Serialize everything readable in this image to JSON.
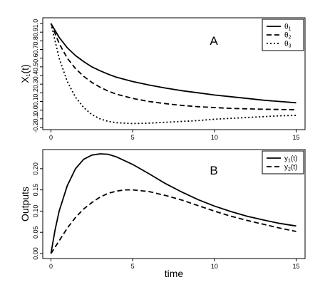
{
  "chart_data": [
    {
      "type": "line",
      "panel_label": "A",
      "ylabel": "X",
      "ylabel_sub": "1",
      "ylabel_suffix": "(t)",
      "xlabel": "",
      "xlim": [
        0,
        15
      ],
      "ylim": [
        -0.2,
        1.0
      ],
      "x_ticks": [
        0,
        5,
        10,
        15
      ],
      "x_tick_labels": [
        "0",
        "5",
        "10",
        "15"
      ],
      "y_ticks": [
        -0.2,
        -0.1,
        0.0,
        0.1,
        0.2,
        0.3,
        0.4,
        0.5,
        0.6,
        0.7,
        0.8,
        0.9,
        1.0
      ],
      "y_tick_labels": [
        "-0.2",
        "-0.1",
        "0.0",
        "0.1",
        "0.2",
        "0.3",
        "0.4",
        "0.5",
        "0.6",
        "0.7",
        "0.8",
        "0.9",
        "1.0"
      ],
      "grid": false,
      "legend_position": "top-right",
      "series": [
        {
          "name": "θ",
          "name_sub": "1",
          "style": "solid",
          "x": [
            0,
            0.5,
            1,
            1.5,
            2,
            2.5,
            3,
            3.5,
            4,
            5,
            6,
            7,
            8,
            9,
            10,
            11,
            12,
            13,
            14,
            15
          ],
          "y": [
            1.0,
            0.84,
            0.72,
            0.63,
            0.56,
            0.5,
            0.455,
            0.415,
            0.38,
            0.33,
            0.29,
            0.255,
            0.225,
            0.2,
            0.175,
            0.155,
            0.135,
            0.115,
            0.1,
            0.085
          ]
        },
        {
          "name": "θ",
          "name_sub": "2",
          "style": "dashed",
          "x": [
            0,
            0.5,
            1,
            1.5,
            2,
            2.5,
            3,
            3.5,
            4,
            5,
            6,
            7,
            8,
            9,
            10,
            11,
            12,
            13,
            14,
            15
          ],
          "y": [
            1.0,
            0.77,
            0.6,
            0.48,
            0.39,
            0.32,
            0.265,
            0.22,
            0.185,
            0.135,
            0.1,
            0.075,
            0.055,
            0.04,
            0.03,
            0.02,
            0.015,
            0.01,
            0.008,
            0.005
          ]
        },
        {
          "name": "θ",
          "name_sub": "3",
          "style": "dotted",
          "x": [
            0,
            0.5,
            1,
            1.5,
            2,
            2.5,
            3,
            3.5,
            4,
            4.5,
            5,
            6,
            7,
            8,
            9,
            10,
            11,
            12,
            13,
            14,
            15
          ],
          "y": [
            1.0,
            0.6,
            0.33,
            0.15,
            0.03,
            -0.05,
            -0.1,
            -0.13,
            -0.145,
            -0.15,
            -0.155,
            -0.15,
            -0.14,
            -0.13,
            -0.12,
            -0.105,
            -0.095,
            -0.085,
            -0.075,
            -0.065,
            -0.06
          ]
        }
      ]
    },
    {
      "type": "line",
      "panel_label": "B",
      "ylabel": "Outputs",
      "xlabel": "time",
      "xlim": [
        0,
        15
      ],
      "ylim": [
        0.0,
        0.235
      ],
      "x_ticks": [
        0,
        5,
        10,
        15
      ],
      "x_tick_labels": [
        "0",
        "5",
        "10",
        "15"
      ],
      "y_ticks": [
        0.0,
        0.05,
        0.1,
        0.15,
        0.2
      ],
      "y_tick_labels": [
        "0.00",
        "0.05",
        "0.10",
        "0.15",
        "0.20"
      ],
      "grid": false,
      "legend_position": "top-right",
      "series": [
        {
          "name": "y",
          "name_sub": "1",
          "name_suffix": "(t)",
          "style": "solid",
          "x": [
            0,
            0.25,
            0.5,
            1,
            1.5,
            2,
            2.5,
            3,
            3.5,
            4,
            5,
            6,
            7,
            8,
            9,
            10,
            11,
            12,
            13,
            14,
            15
          ],
          "y": [
            0.0,
            0.055,
            0.1,
            0.16,
            0.2,
            0.222,
            0.232,
            0.235,
            0.234,
            0.228,
            0.21,
            0.188,
            0.165,
            0.145,
            0.127,
            0.112,
            0.099,
            0.088,
            0.079,
            0.071,
            0.065
          ]
        },
        {
          "name": "y",
          "name_sub": "2",
          "name_suffix": "(t)",
          "style": "dashed",
          "x": [
            0,
            0.5,
            1,
            1.5,
            2,
            2.5,
            3,
            3.5,
            4,
            4.5,
            5,
            6,
            7,
            8,
            9,
            10,
            11,
            12,
            13,
            14,
            15
          ],
          "y": [
            0.0,
            0.03,
            0.06,
            0.085,
            0.105,
            0.12,
            0.133,
            0.142,
            0.147,
            0.15,
            0.15,
            0.146,
            0.137,
            0.126,
            0.113,
            0.1,
            0.088,
            0.078,
            0.069,
            0.06,
            0.052
          ]
        }
      ]
    }
  ]
}
